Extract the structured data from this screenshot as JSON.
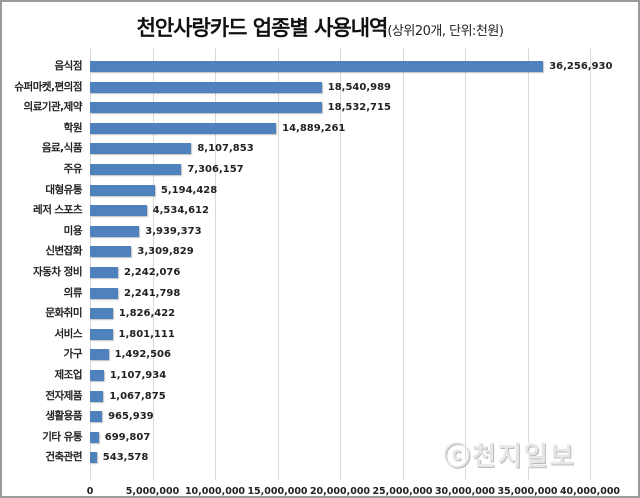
{
  "title": {
    "main": "천안사랑카드 업종별 사용내역",
    "sub": "(상위20개, 단위:천원)"
  },
  "watermark": "ⓒ천지일보",
  "chart_data": {
    "type": "bar",
    "orientation": "horizontal",
    "title": "천안사랑카드 업종별 사용내역(상위20개, 단위:천원)",
    "xlabel": "",
    "ylabel": "",
    "xlim": [
      0,
      40000000
    ],
    "grid": true,
    "legend": "none",
    "bar_color": "#4f81bd",
    "categories": [
      "음식점",
      "슈퍼마켓,편의점",
      "의료기관,제약",
      "학원",
      "음료,식품",
      "주유",
      "대형유통",
      "레저 스포츠",
      "미용",
      "신변잡화",
      "자동차 정비",
      "의류",
      "문화취미",
      "서비스",
      "가구",
      "제조업",
      "전자제품",
      "생활용품",
      "기타 유통",
      "건축관련"
    ],
    "values": [
      36256930,
      18540989,
      18532715,
      14889261,
      8107853,
      7306157,
      5194428,
      4534612,
      3939373,
      3309829,
      2242076,
      2241798,
      1826422,
      1801111,
      1492506,
      1107934,
      1067875,
      965939,
      699807,
      543578
    ],
    "value_labels": [
      "36,256,930",
      "18,540,989",
      "18,532,715",
      "14,889,261",
      "8,107,853",
      "7,306,157",
      "5,194,428",
      "4,534,612",
      "3,939,373",
      "3,309,829",
      "2,242,076",
      "2,241,798",
      "1,826,422",
      "1,801,111",
      "1,492,506",
      "1,107,934",
      "1,067,875",
      "965,939",
      "699,807",
      "543,578"
    ],
    "x_ticks": [
      "0",
      "5,000,000",
      "10,000,000",
      "15,000,000",
      "20,000,000",
      "25,000,000",
      "30,000,000",
      "35,000,000",
      "40,000,000"
    ]
  }
}
